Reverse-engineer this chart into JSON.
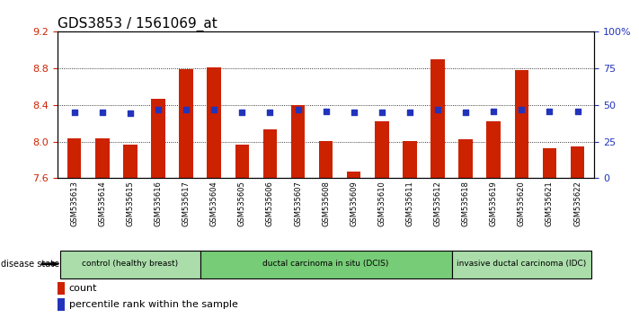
{
  "title": "GDS3853 / 1561069_at",
  "samples": [
    "GSM535613",
    "GSM535614",
    "GSM535615",
    "GSM535616",
    "GSM535617",
    "GSM535604",
    "GSM535605",
    "GSM535606",
    "GSM535607",
    "GSM535608",
    "GSM535609",
    "GSM535610",
    "GSM535611",
    "GSM535612",
    "GSM535618",
    "GSM535619",
    "GSM535620",
    "GSM535621",
    "GSM535622"
  ],
  "bar_values": [
    8.03,
    8.03,
    7.97,
    8.47,
    8.79,
    8.81,
    7.97,
    8.13,
    8.4,
    8.01,
    7.67,
    8.22,
    8.01,
    8.9,
    8.02,
    8.22,
    8.78,
    7.93,
    7.95
  ],
  "dot_values": [
    8.32,
    8.32,
    8.31,
    8.35,
    8.35,
    8.35,
    8.32,
    8.32,
    8.35,
    8.33,
    8.32,
    8.32,
    8.32,
    8.35,
    8.32,
    8.33,
    8.35,
    8.33,
    8.33
  ],
  "ylim": [
    7.6,
    9.2
  ],
  "yticks_left": [
    7.6,
    8.0,
    8.4,
    8.8,
    9.2
  ],
  "yticks_right": [
    0,
    25,
    50,
    75,
    100
  ],
  "yticks_right_labels": [
    "0",
    "25",
    "50",
    "75",
    "100%"
  ],
  "bar_color": "#cc2200",
  "dot_color": "#2233bb",
  "plot_bg_color": "#ffffff",
  "group_colors": [
    "#aaddaa",
    "#77cc77",
    "#aaddaa"
  ],
  "groups": [
    {
      "label": "control (healthy breast)",
      "start": 0,
      "end": 4
    },
    {
      "label": "ductal carcinoma in situ (DCIS)",
      "start": 5,
      "end": 13
    },
    {
      "label": "invasive ductal carcinoma (IDC)",
      "start": 14,
      "end": 18
    }
  ],
  "disease_state_label": "disease state",
  "legend_count_label": "count",
  "legend_pct_label": "percentile rank within the sample",
  "title_fontsize": 11,
  "tick_fontsize": 8,
  "sample_fontsize": 6,
  "bar_width": 0.5
}
